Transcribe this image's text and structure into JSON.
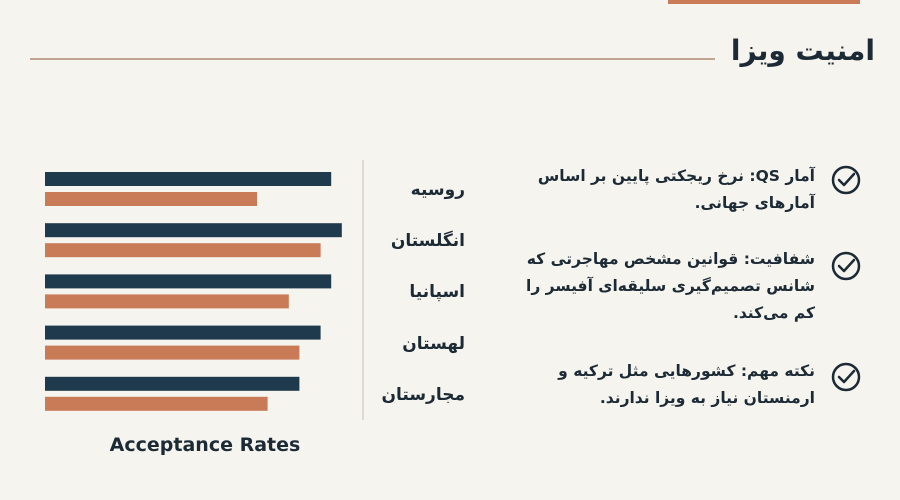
{
  "slide": {
    "title": "امنیت ویزا",
    "bullets": [
      {
        "lines": [
          "آمار QS: نرخ ریجکتی پایین بر اساس",
          "آمارهای جهانی."
        ]
      },
      {
        "lines": [
          "شفافیت: قوانین مشخص مهاجرتی که",
          "شانس تصمیم‌گیری سلیقه‌ای آفیسر را",
          "کم می‌کند."
        ]
      },
      {
        "lines": [
          "نکته مهم: کشورهایی مثل ترکیه و",
          "ارمنستان نیاز به ویزا ندارند."
        ]
      }
    ]
  },
  "chart_data": {
    "type": "barh",
    "xlabel": "Acceptance Rates",
    "categories": [
      "روسیه",
      "انگلستان",
      "اسپانیا",
      "لهستان",
      "مجارستان"
    ],
    "series": [
      {
        "color": "#1f3a4d",
        "values": [
          67.5,
          70,
          67.5,
          65,
          60
        ]
      },
      {
        "color": "#c97a56",
        "values": [
          50,
          65,
          57.5,
          60,
          52.5
        ]
      }
    ],
    "xlim": [
      0,
      75
    ]
  }
}
